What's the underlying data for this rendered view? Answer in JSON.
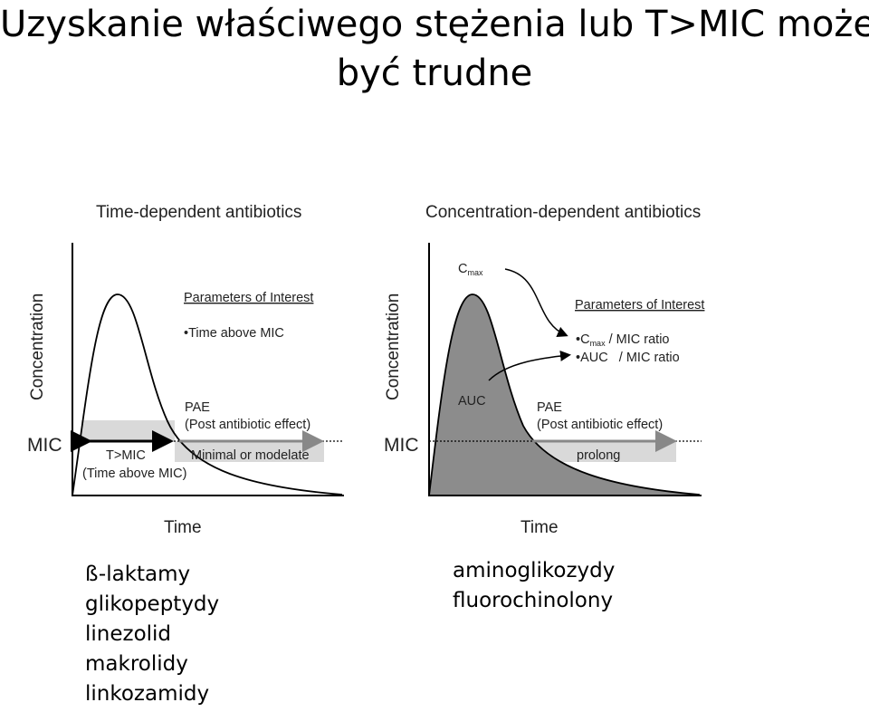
{
  "title": {
    "line1": "Uzyskanie właściwego stężenia lub T>MIC może",
    "line2": "być trudne"
  },
  "left_panel": {
    "heading": "Time-dependent antibiotics",
    "ylabel": "Concentration",
    "xlabel": "Time",
    "mic_label": "MIC",
    "params_heading": "Parameters of Interest",
    "param1": "•Time above MIC",
    "pae_line1": "PAE",
    "pae_line2": "(Post antibiotic effect)",
    "pae_value": "Minimal or modelate",
    "tmic_line1": "T>MIC",
    "tmic_line2": "(Time above MIC)"
  },
  "right_panel": {
    "heading": "Concentration-dependent antibiotics",
    "ylabel": "Concentration",
    "xlabel": "Time",
    "mic_label": "MIC",
    "cmax_main": "C",
    "cmax_sub": "max",
    "params_heading": "Parameters of Interest",
    "param1_prefix": "•C",
    "param1_sub": "max",
    "param1_suffix": " / MIC ratio",
    "param2": "•AUC   / MIC ratio",
    "auc_label": "AUC",
    "pae_line1": "PAE",
    "pae_line2": "(Post antibiotic effect)",
    "pae_value": "prolong"
  },
  "left_list": [
    "ß-laktamy",
    "glikopeptydy",
    "linezolid",
    "makrolidy",
    "linkozamidy"
  ],
  "right_list": [
    "aminoglikozydy",
    "fluorochinolony"
  ],
  "colors": {
    "shade": "#d9d9d9",
    "auc_fill": "#8c8c8c",
    "arrow_gray": "#888888"
  }
}
